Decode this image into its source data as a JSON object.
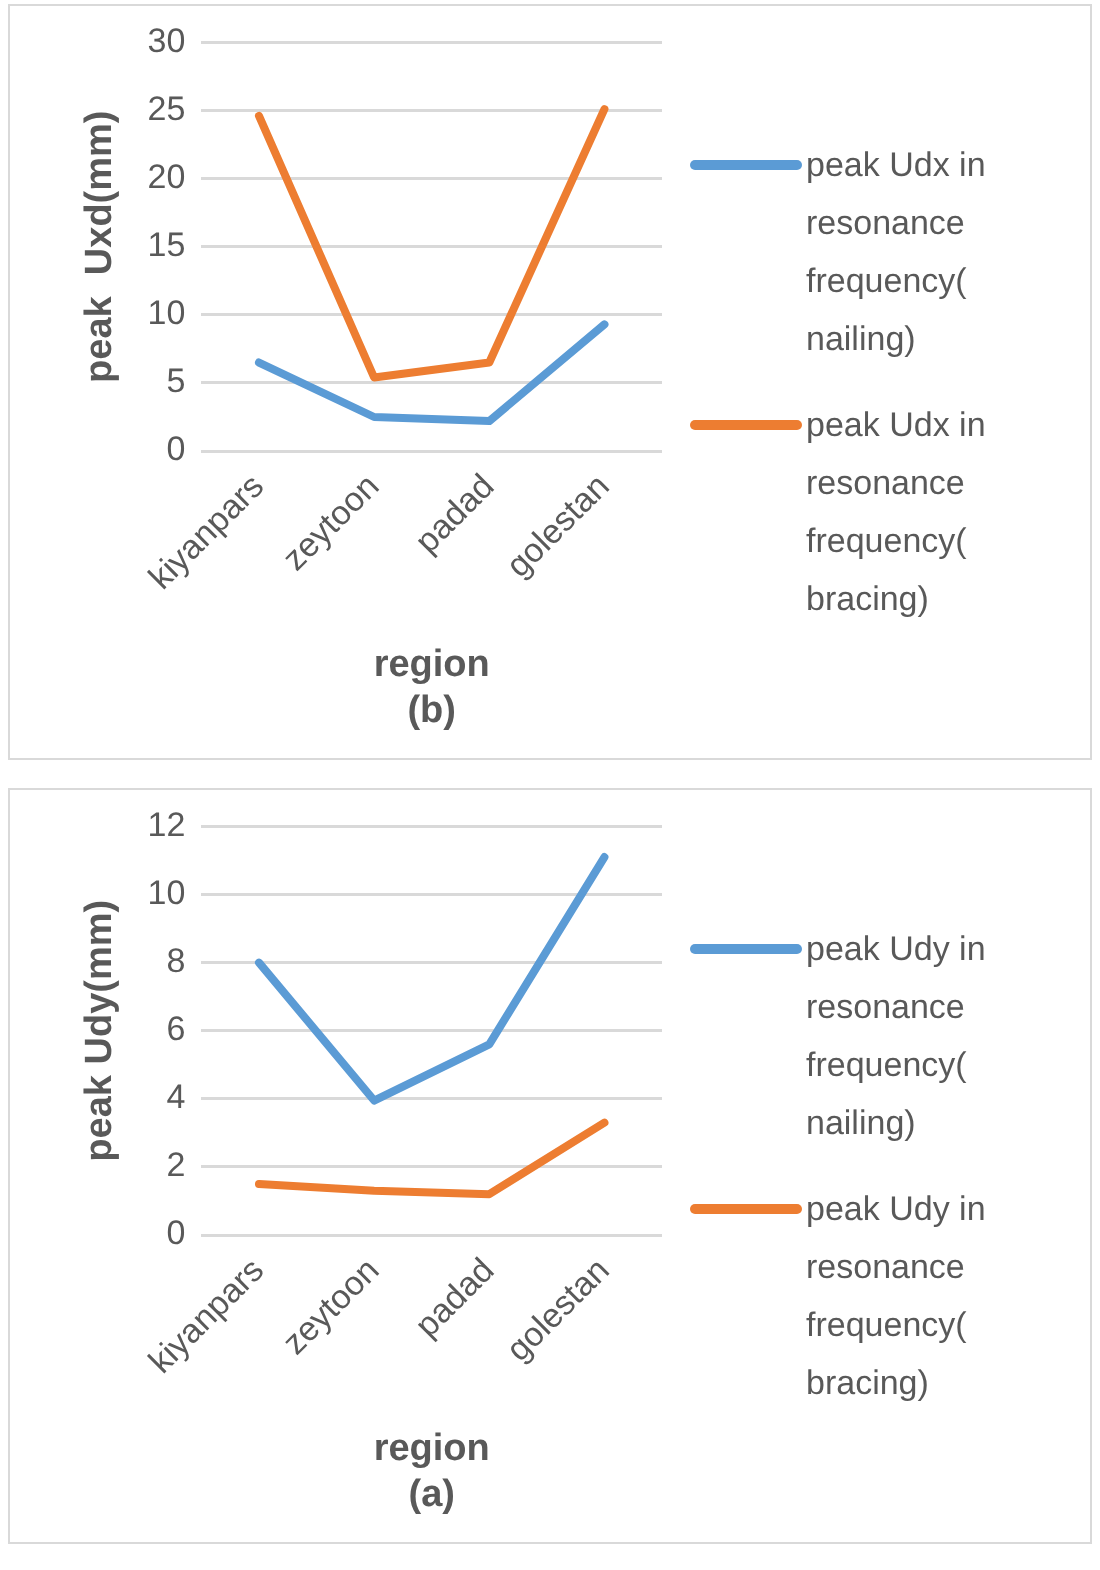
{
  "chart_data": [
    {
      "type": "line",
      "xlabel": "region",
      "ylabel": "peak  Uxd(mm)",
      "annotations": [
        "(b)"
      ],
      "categories": [
        "kiyanpars",
        "zeytoon",
        "padad",
        "golestan"
      ],
      "series": [
        {
          "name": "peak Udx in resonance frequency( nailing)",
          "color": "#5b9bd5",
          "values": [
            6.5,
            2.5,
            2.2,
            9.3
          ]
        },
        {
          "name": "peak Udx in resonance frequency( bracing)",
          "color": "#ed7d31",
          "values": [
            24.6,
            5.4,
            6.5,
            25.1
          ]
        }
      ],
      "ylim": [
        0,
        30
      ],
      "yticks": [
        0,
        5,
        10,
        15,
        20,
        25,
        30
      ],
      "grid": "y",
      "legend": "right",
      "marker": "none"
    },
    {
      "type": "line",
      "xlabel": "region",
      "ylabel": "peak Udy(mm)",
      "annotations": [
        "(a)"
      ],
      "categories": [
        "kiyanpars",
        "zeytoon",
        "padad",
        "golestan"
      ],
      "series": [
        {
          "name": "peak Udy in resonance frequency( nailing)",
          "color": "#5b9bd5",
          "values": [
            8.0,
            3.95,
            5.6,
            11.1
          ]
        },
        {
          "name": "peak Udy in resonance frequency( bracing)",
          "color": "#ed7d31",
          "values": [
            1.5,
            1.3,
            1.2,
            3.3
          ]
        }
      ],
      "ylim": [
        0,
        12
      ],
      "yticks": [
        0,
        2,
        4,
        6,
        8,
        10,
        12
      ],
      "grid": "y",
      "legend": "right",
      "marker": "none"
    }
  ]
}
